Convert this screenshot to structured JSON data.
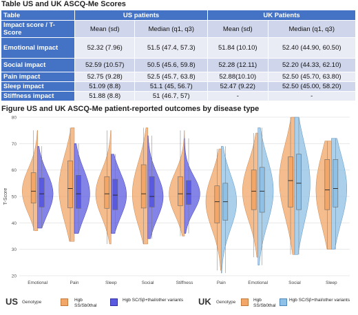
{
  "table": {
    "title": "Table US and UK ASCQ-Me Scores",
    "header_group": [
      "Table",
      "US patients",
      "UK Patients"
    ],
    "header_sub": [
      "Impact score / T-Score",
      "Mean (sd)",
      "Median (q1, q3)",
      "Mean (sd)",
      "Median (q1, q3)"
    ],
    "rows": [
      {
        "label": "Emotional impact",
        "cells": [
          "52.32 (7.96)",
          "51.5 (47.4, 57.3)",
          "51.84 (10.10)",
          "52.40 (44.90, 60.50)"
        ]
      },
      {
        "label": "Social impact",
        "cells": [
          "52.59 (10.57)",
          "50.5 (45.6, 59.8)",
          "52.28 (12.11)",
          "52.20 (44.33, 62.10)"
        ]
      },
      {
        "label": "Pain impact",
        "cells": [
          "52.75 (9.28)",
          "52.5 (45.7, 63.8)",
          "52.88(10.10)",
          "52.50 (45.70, 63.80)"
        ]
      },
      {
        "label": "Sleep impact",
        "cells": [
          "51.09 (8.8)",
          "51.1 (45, 56.7)",
          "52.47 (9.22)",
          "52.50 (45.00, 58.20)"
        ]
      },
      {
        "label": "Stiffness impact",
        "cells": [
          "51.88 (8.8)",
          "51 (46.7, 57)",
          "-",
          "-"
        ]
      }
    ]
  },
  "figure_title": "Figure US and UK ASCQ-Me patient-reported outcomes by disease type",
  "chart_data": {
    "type": "violin",
    "ylabel": "T-Score",
    "ylim": [
      20,
      80
    ],
    "yticks": [
      20,
      30,
      40,
      50,
      60,
      70,
      80
    ],
    "groups": [
      {
        "country": "US",
        "categories": [
          "Emotional",
          "Pain",
          "Sleep",
          "Social",
          "Stiffness"
        ]
      },
      {
        "country": "UK",
        "categories": [
          "Pain",
          "Emotional",
          "Social",
          "Sleep"
        ]
      }
    ],
    "series": [
      {
        "name": "US Hgb SS/Sb0thal",
        "color": "#f2a768",
        "group": "US",
        "q1": [
          47.5,
          45.7,
          45.5,
          45.6,
          46.5
        ],
        "median": [
          52.0,
          53.0,
          51.0,
          51.0,
          51.0
        ],
        "q3": [
          59.0,
          63.5,
          57.5,
          62.0,
          57.5
        ],
        "min": [
          37,
          33,
          32,
          32,
          35
        ],
        "max": [
          75,
          76,
          75,
          76,
          75
        ]
      },
      {
        "name": "US Hgb SC/Sβ+thal/other variants",
        "color": "#5a5ae0",
        "group": "US",
        "q1": [
          46.0,
          45.5,
          45.0,
          46.0,
          47.0
        ],
        "median": [
          51.0,
          51.0,
          50.5,
          50.0,
          51.0
        ],
        "q3": [
          57.0,
          58.0,
          56.5,
          57.5,
          56.0
        ],
        "min": [
          38,
          36,
          36,
          34,
          36
        ],
        "max": [
          69,
          70,
          66,
          73,
          72
        ]
      },
      {
        "name": "UK Hgb SS/Sb0thal",
        "color": "#f2a768",
        "group": "UK",
        "q1": [
          40.0,
          45.0,
          46.0,
          45.0
        ],
        "median": [
          48.0,
          52.0,
          56.0,
          52.5
        ],
        "q3": [
          54.0,
          60.0,
          65.0,
          64.0
        ],
        "min": [
          22,
          27,
          28,
          30
        ],
        "max": [
          68,
          74,
          80,
          71
        ]
      },
      {
        "name": "UK Hgb SC/Sβ+thal/other variants",
        "color": "#8fc0e6",
        "group": "UK",
        "q1": [
          41.0,
          44.0,
          45.0,
          46.0
        ],
        "median": [
          48.0,
          52.0,
          55.0,
          53.0
        ],
        "q3": [
          55.0,
          61.0,
          66.0,
          64.0
        ],
        "min": [
          21,
          24,
          28,
          30
        ],
        "max": [
          69,
          76,
          80,
          72
        ]
      }
    ]
  },
  "legend": {
    "us_title": "US",
    "uk_title": "UK",
    "genotype_label": "Genotype",
    "item1": "Hgb SS/Sb0thal",
    "item2": "Hgb SC/Sβ+thal/other variants",
    "uk_item1": "Hgb SS/Sb0thal",
    "uk_item2": "Hgb SC/Sβ+thal/other variants"
  }
}
